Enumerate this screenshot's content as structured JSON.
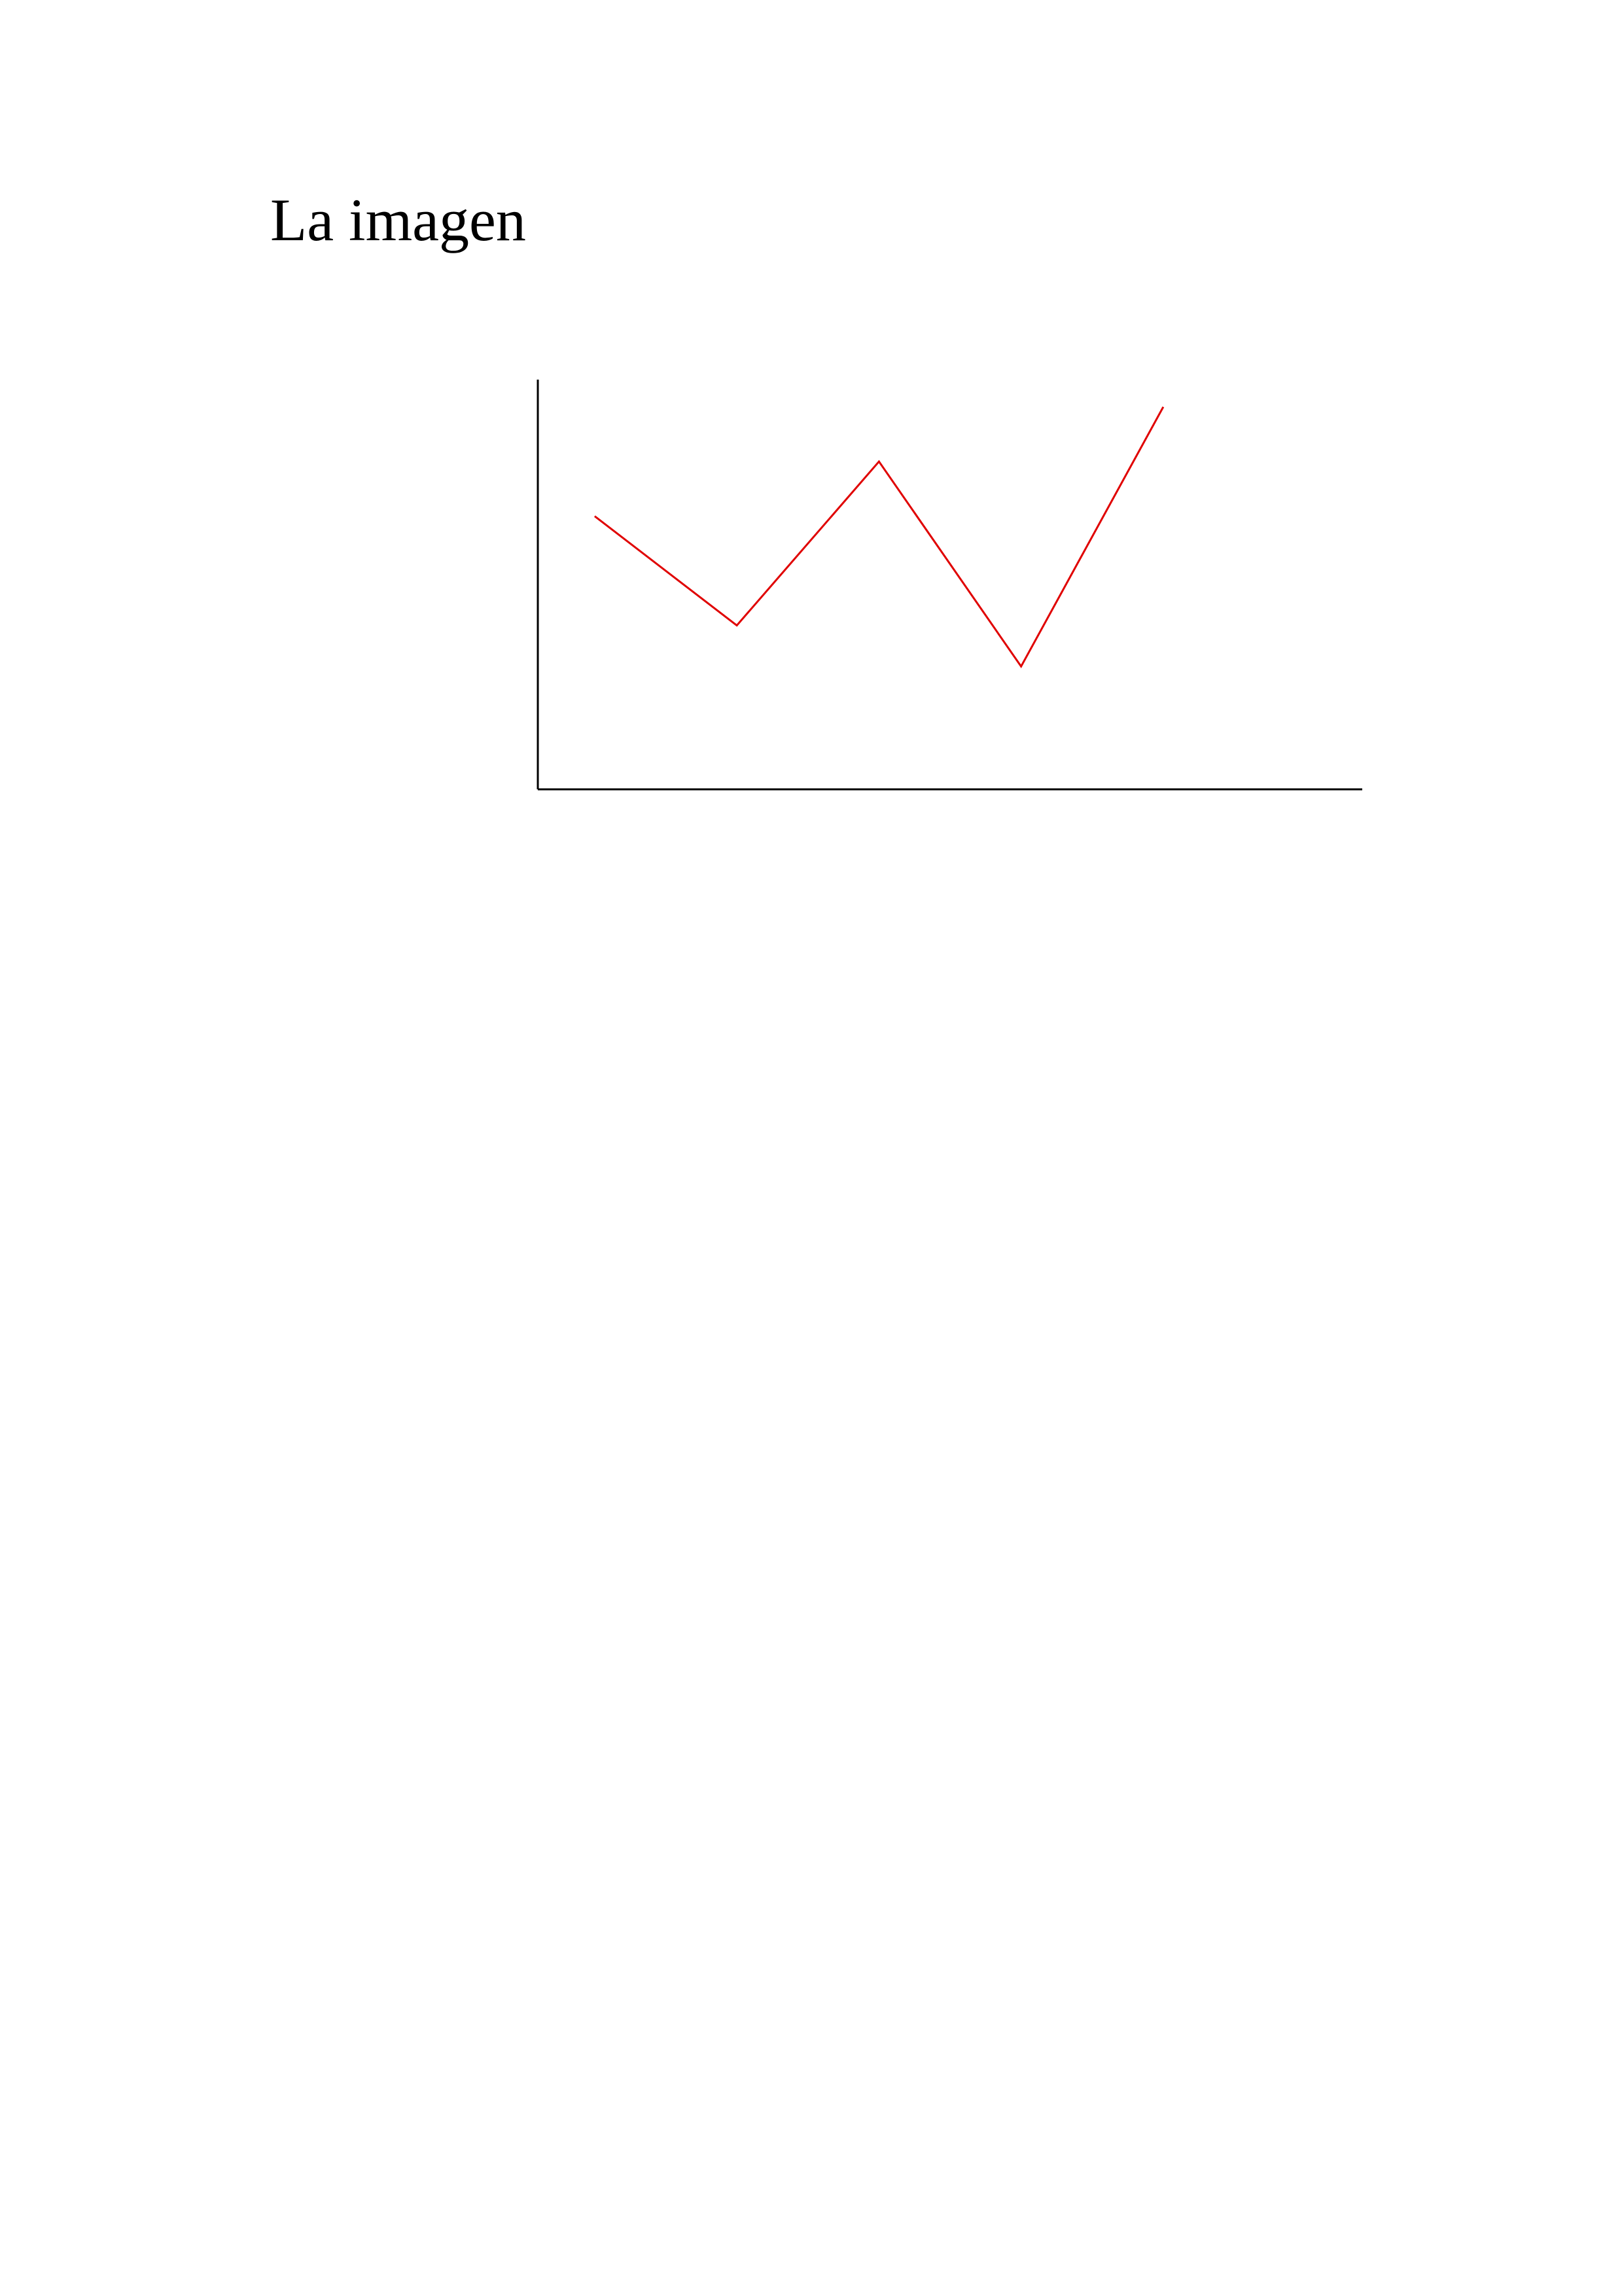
{
  "document": {
    "heading": "La imagen"
  },
  "colors": {
    "text": "#000000",
    "axis": "#000000",
    "series_line": "#e00000",
    "background": "#ffffff"
  },
  "chart_data": {
    "type": "line",
    "title": "",
    "xlabel": "",
    "ylabel": "",
    "x": [
      1,
      2,
      3,
      4,
      5
    ],
    "series": [
      {
        "values": [
          5.0,
          3.0,
          6.0,
          2.25,
          7.0
        ]
      }
    ],
    "xlim": [
      0.6,
      6.4
    ],
    "ylim": [
      0,
      7.5
    ],
    "grid": false,
    "legend": "none",
    "axes": [
      "left",
      "bottom"
    ]
  }
}
